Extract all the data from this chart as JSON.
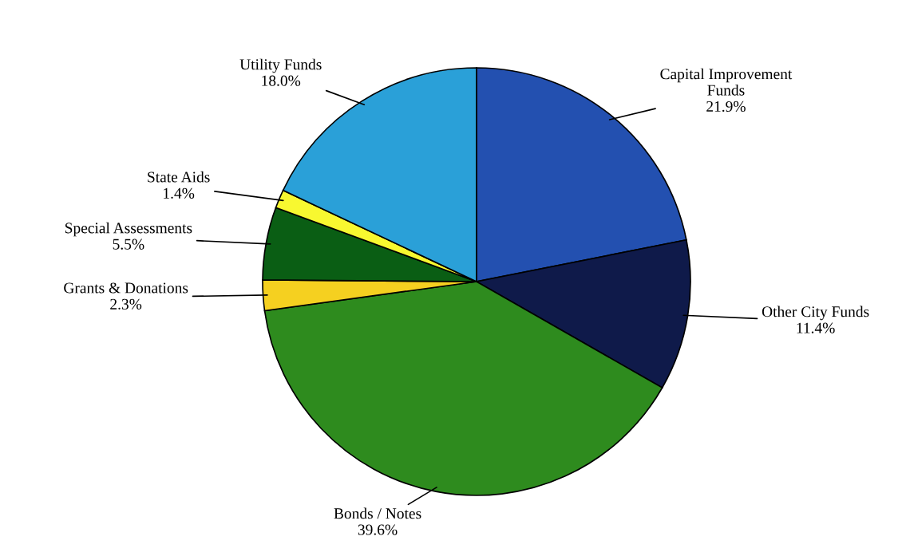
{
  "chart_data": {
    "type": "pie",
    "categories": [
      "Capital Improvement\nFunds",
      "Other City Funds",
      "Bonds / Notes",
      "Grants & Donations",
      "Special Assessments",
      "State Aids",
      "Utility Funds"
    ],
    "values": [
      21.9,
      11.4,
      39.6,
      2.3,
      5.5,
      1.4,
      18.0
    ],
    "colors": [
      "#2350b0",
      "#0f1a4a",
      "#2e8b1e",
      "#f5d020",
      "#0a5e14",
      "#f8f830",
      "#2aa0d8"
    ],
    "value_labels": [
      "21.9%",
      "11.4%",
      "39.6%",
      "2.3%",
      "5.5%",
      "1.4%",
      "18.0%"
    ],
    "legend": false
  }
}
